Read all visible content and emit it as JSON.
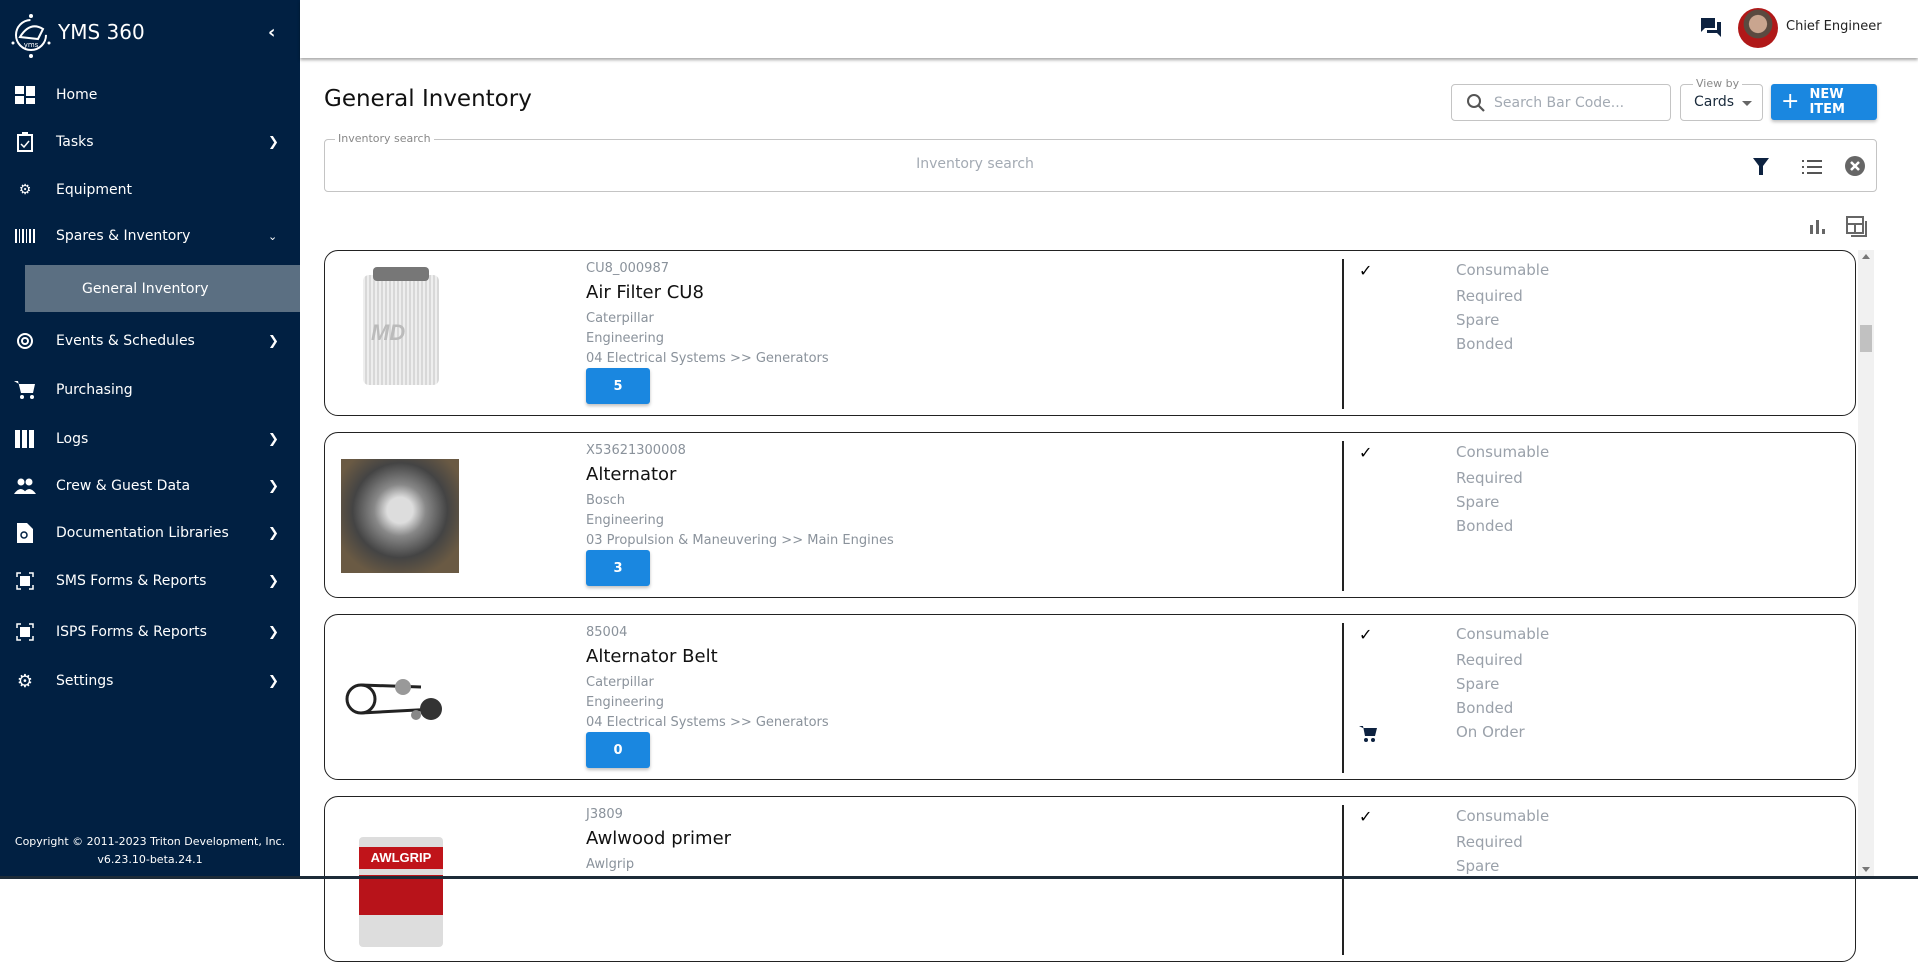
{
  "app": {
    "title": "YMS 360",
    "logo_text": "yms"
  },
  "sidebar": {
    "items": [
      {
        "label": "Home",
        "icon": "dashboard-icon",
        "chevron": false
      },
      {
        "label": "Tasks",
        "icon": "clipboard-icon",
        "chevron": true
      },
      {
        "label": "Equipment",
        "icon": "gear-wrench-icon",
        "chevron": false
      },
      {
        "label": "Spares & Inventory",
        "icon": "barcode-icon",
        "chevron": true,
        "expanded": true
      },
      {
        "label": "Events & Schedules",
        "icon": "event-cycle-icon",
        "chevron": true
      },
      {
        "label": "Purchasing",
        "icon": "cart-icon",
        "chevron": false
      },
      {
        "label": "Logs",
        "icon": "binders-icon",
        "chevron": true
      },
      {
        "label": "Crew & Guest Data",
        "icon": "people-icon",
        "chevron": true
      },
      {
        "label": "Documentation Libraries",
        "icon": "document-search-icon",
        "chevron": true
      },
      {
        "label": "SMS Forms & Reports",
        "icon": "form-scan-icon",
        "chevron": true
      },
      {
        "label": "ISPS Forms & Reports",
        "icon": "form-scan-icon",
        "chevron": true
      },
      {
        "label": "Settings",
        "icon": "settings-icon",
        "chevron": true
      }
    ],
    "sub_item": "General Inventory",
    "copyright": "Copyright © 2011-2023 Triton Development, Inc.",
    "version": "v6.23.10-beta.24.1"
  },
  "header": {
    "user": "Chief Engineer"
  },
  "page": {
    "title": "General Inventory",
    "barcode_placeholder": "Search Bar Code...",
    "view_by_label": "View by",
    "view_by_value": "Cards",
    "new_item": "NEW ITEM",
    "inventory_search_label": "Inventory search",
    "inventory_search_placeholder": "Inventory search"
  },
  "colors": {
    "sidebar": "#012042",
    "accent": "#1a87e0",
    "active_item": "#5b6f82"
  },
  "items": [
    {
      "code": "CU8_000987",
      "name": "Air Filter CU8",
      "maker": "Caterpillar",
      "department": "Engineering",
      "location": "04 Electrical Systems >> Generators",
      "qty": "5",
      "flags": [
        "Consumable",
        "Required",
        "Spare",
        "Bonded"
      ],
      "consumable_checked": true
    },
    {
      "code": "X53621300008",
      "name": "Alternator",
      "maker": "Bosch",
      "department": "Engineering",
      "location": "03 Propulsion & Maneuvering >> Main Engines",
      "qty": "3",
      "flags": [
        "Consumable",
        "Required",
        "Spare",
        "Bonded"
      ],
      "consumable_checked": true
    },
    {
      "code": "85004",
      "name": "Alternator Belt",
      "maker": "Caterpillar",
      "department": "Engineering",
      "location": "04 Electrical Systems >> Generators",
      "qty": "0",
      "flags": [
        "Consumable",
        "Required",
        "Spare",
        "Bonded",
        "On Order"
      ],
      "consumable_checked": true
    },
    {
      "code": "J3809",
      "name": "Awlwood primer",
      "maker": "Awlgrip",
      "flags": [
        "Consumable",
        "Required",
        "Spare"
      ],
      "consumable_checked": true,
      "image_label": "AWLGRIP"
    }
  ]
}
